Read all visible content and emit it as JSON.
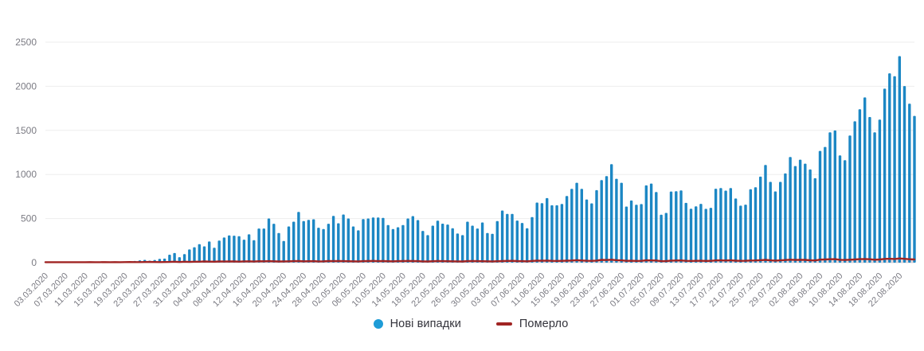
{
  "chart_data": {
    "type": "bar",
    "title": "",
    "grid": "horizontal",
    "legend_position": "bottom-center",
    "ylim": [
      0,
      2500
    ],
    "yticks": [
      0,
      500,
      1000,
      1500,
      2000,
      2500
    ],
    "x_tick_every": 4,
    "x_tick_labels": [
      "03.03.2020",
      "07.03.2020",
      "11.03.2020",
      "15.03.2020",
      "19.03.2020",
      "23.03.2020",
      "27.03.2020",
      "31.03.2020",
      "04.04.2020",
      "08.04.2020",
      "12.04.2020",
      "16.04.2020",
      "20.04.2020",
      "24.04.2020",
      "28.04.2020",
      "02.05.2020",
      "06.05.2020",
      "10.05.2020",
      "14.05.2020",
      "18.05.2020",
      "22.05.2020",
      "26.05.2020",
      "30.05.2020",
      "03.06.2020",
      "07.06.2020",
      "11.06.2020",
      "15.06.2020",
      "19.06.2020",
      "23.06.2020",
      "27.06.2020",
      "01.07.2020",
      "05.07.2020",
      "09.07.2020",
      "13.07.2020",
      "17.07.2020",
      "21.07.2020",
      "25.07.2020",
      "29.07.2020",
      "02.08.2020",
      "06.08.2020",
      "10.08.2020",
      "14.08.2020",
      "18.08.2020",
      "22.08.2020"
    ],
    "series": [
      {
        "name": "Нові випадки",
        "type": "bar",
        "color": "#1c87c4",
        "marker_color": "#1e9cd7",
        "values": [
          1,
          0,
          0,
          0,
          0,
          1,
          0,
          0,
          1,
          1,
          0,
          2,
          1,
          3,
          7,
          7,
          5,
          12,
          19,
          26,
          32,
          23,
          31,
          43,
          46,
          90,
          109,
          62,
          97,
          150,
          175,
          210,
          185,
          240,
          170,
          250,
          285,
          310,
          306,
          300,
          261,
          321,
          255,
          387,
          387,
          501,
          441,
          336,
          246,
          411,
          465,
          576,
          471,
          486,
          492,
          396,
          381,
          441,
          531,
          447,
          546,
          501,
          411,
          366,
          495,
          501,
          513,
          513,
          507,
          426,
          381,
          402,
          426,
          501,
          528,
          483,
          360,
          312,
          420,
          476,
          442,
          432,
          390,
          330,
          312,
          465,
          420,
          387,
          456,
          336,
          327,
          471,
          591,
          552,
          552,
          477,
          450,
          390,
          516,
          681,
          675,
          732,
          651,
          651,
          666,
          756,
          837,
          906,
          837,
          717,
          672,
          822,
          936,
          981,
          1117,
          951,
          906,
          636,
          705,
          657,
          664,
          876,
          897,
          801,
          543,
          564,
          807,
          810,
          819,
          678,
          612,
          638,
          667,
          610,
          622,
          838,
          847,
          817,
          847,
          727,
          646,
          658,
          832,
          856,
          976,
          1108,
          916,
          808,
          916,
          1012,
          1198,
          1096,
          1168,
          1123,
          1057,
          958,
          1267,
          1312,
          1477,
          1499,
          1216,
          1162,
          1441,
          1603,
          1739,
          1874,
          1652,
          1477,
          1622,
          1973,
          2147,
          2114,
          2342,
          2003,
          1802,
          1664
        ]
      },
      {
        "name": "Померло",
        "type": "line",
        "color": "#a02423",
        "area_fill": "rgba(160,36,35,0.16)",
        "values": [
          0,
          0,
          0,
          0,
          0,
          0,
          0,
          0,
          0,
          1,
          0,
          0,
          1,
          0,
          1,
          0,
          1,
          2,
          1,
          1,
          2,
          3,
          2,
          1,
          2,
          3,
          5,
          2,
          5,
          3,
          5,
          5,
          8,
          6,
          5,
          8,
          7,
          9,
          8,
          6,
          9,
          10,
          7,
          11,
          10,
          12,
          10,
          8,
          9,
          10,
          12,
          13,
          10,
          11,
          12,
          9,
          10,
          13,
          12,
          13,
          12,
          11,
          10,
          9,
          12,
          13,
          14,
          12,
          13,
          11,
          10,
          12,
          13,
          14,
          13,
          12,
          9,
          8,
          11,
          13,
          12,
          11,
          10,
          9,
          8,
          12,
          13,
          12,
          11,
          10,
          9,
          11,
          13,
          14,
          15,
          13,
          12,
          10,
          14,
          17,
          16,
          18,
          15,
          14,
          15,
          17,
          19,
          23,
          19,
          16,
          15,
          18,
          26,
          24,
          28,
          23,
          21,
          15,
          16,
          14,
          15,
          21,
          20,
          19,
          12,
          13,
          18,
          19,
          20,
          15,
          14,
          15,
          16,
          14,
          15,
          20,
          21,
          19,
          21,
          17,
          15,
          16,
          19,
          20,
          23,
          26,
          21,
          18,
          21,
          24,
          28,
          25,
          27,
          26,
          22,
          20,
          29,
          31,
          33,
          34,
          27,
          25,
          28,
          31,
          34,
          36,
          33,
          28,
          31,
          37,
          39,
          36,
          42,
          38,
          33,
          31
        ]
      }
    ]
  },
  "axis": {
    "y_label_color": "#7b7b83",
    "x_label_color": "#7b7b83",
    "gridline_color": "#ededed",
    "baseline_color": "#dadee4"
  }
}
